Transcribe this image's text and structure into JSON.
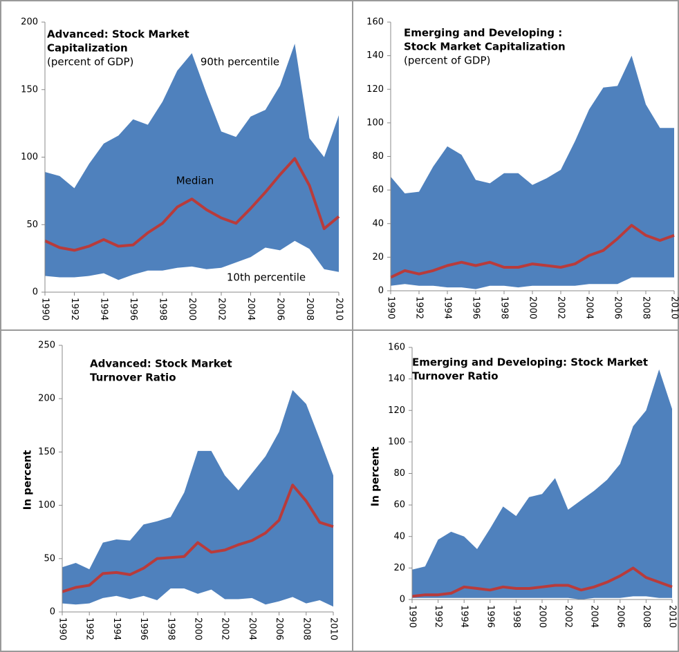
{
  "chart_data": [
    {
      "type": "area",
      "title": [
        "Advanced: Stock Market",
        "Capitalization"
      ],
      "subtitle": "(percent of GDP)",
      "x": [
        1990,
        1991,
        1992,
        1993,
        1994,
        1995,
        1996,
        1997,
        1998,
        1999,
        2000,
        2001,
        2002,
        2003,
        2004,
        2005,
        2006,
        2007,
        2008,
        2009,
        2010
      ],
      "xlim": [
        1990,
        2010
      ],
      "xticks": [
        1990,
        1992,
        1994,
        1996,
        1998,
        2000,
        2002,
        2004,
        2006,
        2008,
        2010
      ],
      "ylim": [
        0,
        200
      ],
      "yticks": [
        0,
        50,
        100,
        150,
        200
      ],
      "series": [
        {
          "name": "90th percentile",
          "color": "#4f81bd",
          "values": [
            89,
            86,
            77,
            95,
            110,
            116,
            128,
            124,
            141,
            164,
            177,
            147,
            119,
            115,
            130,
            135,
            153,
            184,
            114,
            100,
            131
          ]
        },
        {
          "name": "10th percentile",
          "color": "#ffffff",
          "values": [
            12,
            11,
            11,
            12,
            14,
            9,
            13,
            16,
            16,
            18,
            19,
            17,
            18,
            22,
            26,
            33,
            31,
            38,
            32,
            17,
            15
          ]
        },
        {
          "name": "Median",
          "color": "#b83b3b",
          "values": [
            38,
            33,
            31,
            34,
            39,
            34,
            35,
            44,
            51,
            63,
            69,
            61,
            55,
            51,
            62,
            74,
            87,
            99,
            79,
            47,
            56
          ]
        }
      ]
    },
    {
      "type": "area",
      "title": [
        "Emerging and Developing :",
        "Stock Market Capitalization"
      ],
      "subtitle": "(percent of GDP)",
      "x": [
        1990,
        1991,
        1992,
        1993,
        1994,
        1995,
        1996,
        1997,
        1998,
        1999,
        2000,
        2001,
        2002,
        2003,
        2004,
        2005,
        2006,
        2007,
        2008,
        2009,
        2010
      ],
      "xlim": [
        1990,
        2010
      ],
      "xticks": [
        1990,
        1992,
        1994,
        1996,
        1998,
        2000,
        2002,
        2004,
        2006,
        2008,
        2010
      ],
      "ylim": [
        0,
        160
      ],
      "yticks": [
        0,
        20,
        40,
        60,
        80,
        100,
        120,
        140,
        160
      ],
      "series": [
        {
          "color": "#4f81bd",
          "values": [
            68,
            58,
            59,
            74,
            86,
            81,
            66,
            64,
            70,
            70,
            63,
            67,
            72,
            89,
            108,
            121,
            122,
            140,
            111,
            97,
            97
          ]
        },
        {
          "color": "#ffffff",
          "values": [
            3,
            4,
            3,
            3,
            2,
            2,
            1,
            3,
            3,
            2,
            3,
            3,
            3,
            3,
            4,
            4,
            4,
            8,
            8,
            8,
            8
          ]
        },
        {
          "color": "#b83b3b",
          "values": [
            8,
            12,
            10,
            12,
            15,
            17,
            15,
            17,
            14,
            14,
            16,
            15,
            14,
            16,
            21,
            24,
            31,
            39,
            33,
            30,
            33
          ]
        }
      ]
    },
    {
      "type": "area",
      "title": [
        "Advanced: Stock Market",
        "Turnover Ratio"
      ],
      "ylabel": "In percent",
      "x": [
        1990,
        1991,
        1992,
        1993,
        1994,
        1995,
        1996,
        1997,
        1998,
        1999,
        2000,
        2001,
        2002,
        2003,
        2004,
        2005,
        2006,
        2007,
        2008,
        2009,
        2010
      ],
      "xlim": [
        1990,
        2010
      ],
      "xticks": [
        1990,
        1992,
        1994,
        1996,
        1998,
        2000,
        2002,
        2004,
        2006,
        2008,
        2010
      ],
      "ylim": [
        0,
        250
      ],
      "yticks": [
        0,
        50,
        100,
        150,
        200,
        250
      ],
      "series": [
        {
          "color": "#4f81bd",
          "values": [
            42,
            46,
            40,
            65,
            68,
            67,
            82,
            85,
            89,
            112,
            151,
            151,
            128,
            114,
            130,
            146,
            169,
            208,
            195,
            162,
            128
          ]
        },
        {
          "color": "#ffffff",
          "values": [
            8,
            7,
            8,
            13,
            15,
            12,
            15,
            11,
            22,
            22,
            17,
            21,
            12,
            12,
            13,
            7,
            10,
            14,
            8,
            11,
            5
          ]
        },
        {
          "color": "#b83b3b",
          "values": [
            19,
            23,
            25,
            36,
            37,
            35,
            41,
            50,
            51,
            52,
            65,
            56,
            58,
            63,
            67,
            74,
            86,
            119,
            104,
            84,
            80
          ]
        }
      ]
    },
    {
      "type": "area",
      "title": [
        "Emerging and Developing: Stock Market",
        "Turnover Ratio"
      ],
      "ylabel": "In percent",
      "x": [
        1990,
        1991,
        1992,
        1993,
        1994,
        1995,
        1996,
        1997,
        1998,
        1999,
        2000,
        2001,
        2002,
        2003,
        2004,
        2005,
        2006,
        2007,
        2008,
        2009,
        2010
      ],
      "xlim": [
        1990,
        2010
      ],
      "xticks": [
        1990,
        1992,
        1994,
        1996,
        1998,
        2000,
        2002,
        2004,
        2006,
        2008,
        2010
      ],
      "ylim": [
        0,
        160
      ],
      "yticks": [
        0,
        20,
        40,
        60,
        80,
        100,
        120,
        140,
        160
      ],
      "series": [
        {
          "color": "#4f81bd",
          "values": [
            19,
            21,
            38,
            43,
            40,
            32,
            45,
            59,
            53,
            65,
            67,
            77,
            57,
            63,
            69,
            76,
            86,
            110,
            120,
            146,
            121
          ]
        },
        {
          "color": "#ffffff",
          "values": [
            1,
            1,
            1,
            1,
            1,
            1,
            1,
            1,
            1,
            1,
            1,
            1,
            1,
            0,
            1,
            1,
            1,
            2,
            2,
            1,
            1
          ]
        },
        {
          "color": "#b83b3b",
          "values": [
            2,
            3,
            3,
            4,
            8,
            7,
            6,
            8,
            7,
            7,
            8,
            9,
            9,
            6,
            8,
            11,
            15,
            20,
            14,
            11,
            8
          ]
        }
      ]
    }
  ]
}
